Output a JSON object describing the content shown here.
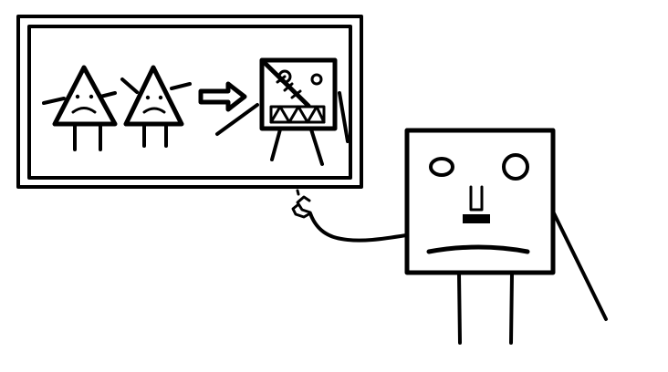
{
  "scene": {
    "colors": {
      "ink": "#000000",
      "paper": "#ffffff"
    },
    "panel": {
      "left_figures": [
        "sad-triangle-character",
        "sad-triangle-character"
      ],
      "arrow": "right-arrow-icon",
      "right_figure": "crossed-out-monster-character"
    },
    "presenter": "sad-square-character-pointing"
  }
}
